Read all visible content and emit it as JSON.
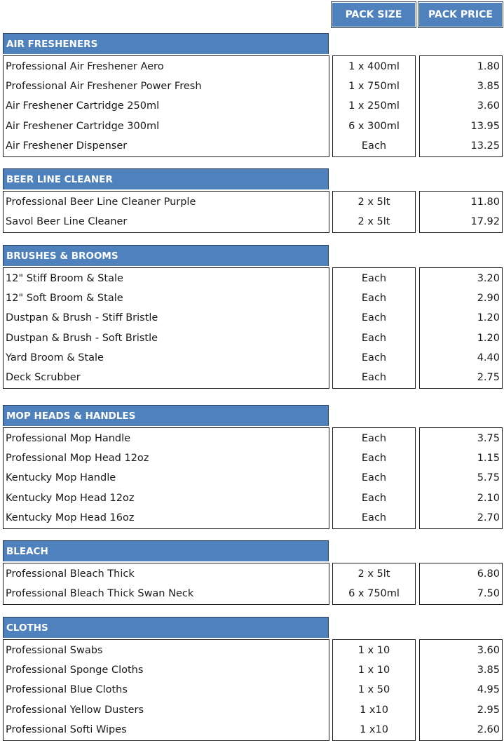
{
  "header": {
    "pack_size": "PACK SIZE",
    "pack_price": "PACK PRICE"
  },
  "sections": [
    {
      "title": "AIR FRESHENERS",
      "items": [
        {
          "name": "Professional Air Freshener Aero",
          "size": "1 x 400ml",
          "price": "1.80"
        },
        {
          "name": "Professional Air Freshener Power Fresh",
          "size": "1 x 750ml",
          "price": "3.85"
        },
        {
          "name": "Air Freshener Cartridge 250ml",
          "size": "1 x 250ml",
          "price": "3.60"
        },
        {
          "name": "Air Freshener Cartridge 300ml",
          "size": "6 x 300ml",
          "price": "13.95"
        },
        {
          "name": "Air Freshener Dispenser",
          "size": "Each",
          "price": "13.25"
        }
      ]
    },
    {
      "title": "BEER LINE CLEANER",
      "items": [
        {
          "name": "Professional Beer Line Cleaner Purple",
          "size": "2 x 5lt",
          "price": "11.80"
        },
        {
          "name": "Savol Beer Line Cleaner",
          "size": "2 x 5lt",
          "price": "17.92"
        }
      ]
    },
    {
      "title": "BRUSHES & BROOMS",
      "items": [
        {
          "name": "12\" Stiff Broom & Stale",
          "size": "Each",
          "price": "3.20"
        },
        {
          "name": "12\" Soft Broom & Stale",
          "size": "Each",
          "price": "2.90"
        },
        {
          "name": "Dustpan & Brush - Stiff Bristle",
          "size": "Each",
          "price": "1.20"
        },
        {
          "name": "Dustpan & Brush - Soft Bristle",
          "size": "Each",
          "price": "1.20"
        },
        {
          "name": "Yard Broom & Stale",
          "size": "Each",
          "price": "4.40"
        },
        {
          "name": "Deck Scrubber",
          "size": "Each",
          "price": "2.75"
        }
      ]
    },
    {
      "title": "MOP HEADS & HANDLES",
      "items": [
        {
          "name": "Professional Mop Handle",
          "size": "Each",
          "price": "3.75"
        },
        {
          "name": "Professional Mop Head 12oz",
          "size": "Each",
          "price": "1.15"
        },
        {
          "name": "Kentucky Mop Handle",
          "size": "Each",
          "price": "5.75"
        },
        {
          "name": "Kentucky Mop Head 12oz",
          "size": "Each",
          "price": "2.10"
        },
        {
          "name": "Kentucky Mop Head 16oz",
          "size": "Each",
          "price": "2.70"
        }
      ]
    },
    {
      "title": "BLEACH",
      "items": [
        {
          "name": "Professional Bleach Thick",
          "size": "2 x 5lt",
          "price": "6.80"
        },
        {
          "name": "Professional Bleach Thick Swan Neck",
          "size": "6 x 750ml",
          "price": "7.50"
        }
      ]
    },
    {
      "title": "CLOTHS",
      "items": [
        {
          "name": "Professional Swabs",
          "size": "1 x 10",
          "price": "3.60"
        },
        {
          "name": "Professional Sponge Cloths",
          "size": "1 x 10",
          "price": "3.85"
        },
        {
          "name": "Professional Blue Cloths",
          "size": "1 x 50",
          "price": "4.95"
        },
        {
          "name": "Professional Yellow Dusters",
          "size": "1 x10",
          "price": "2.95"
        },
        {
          "name": "Professional Softi Wipes",
          "size": "1 x10",
          "price": "2.60"
        }
      ]
    }
  ]
}
